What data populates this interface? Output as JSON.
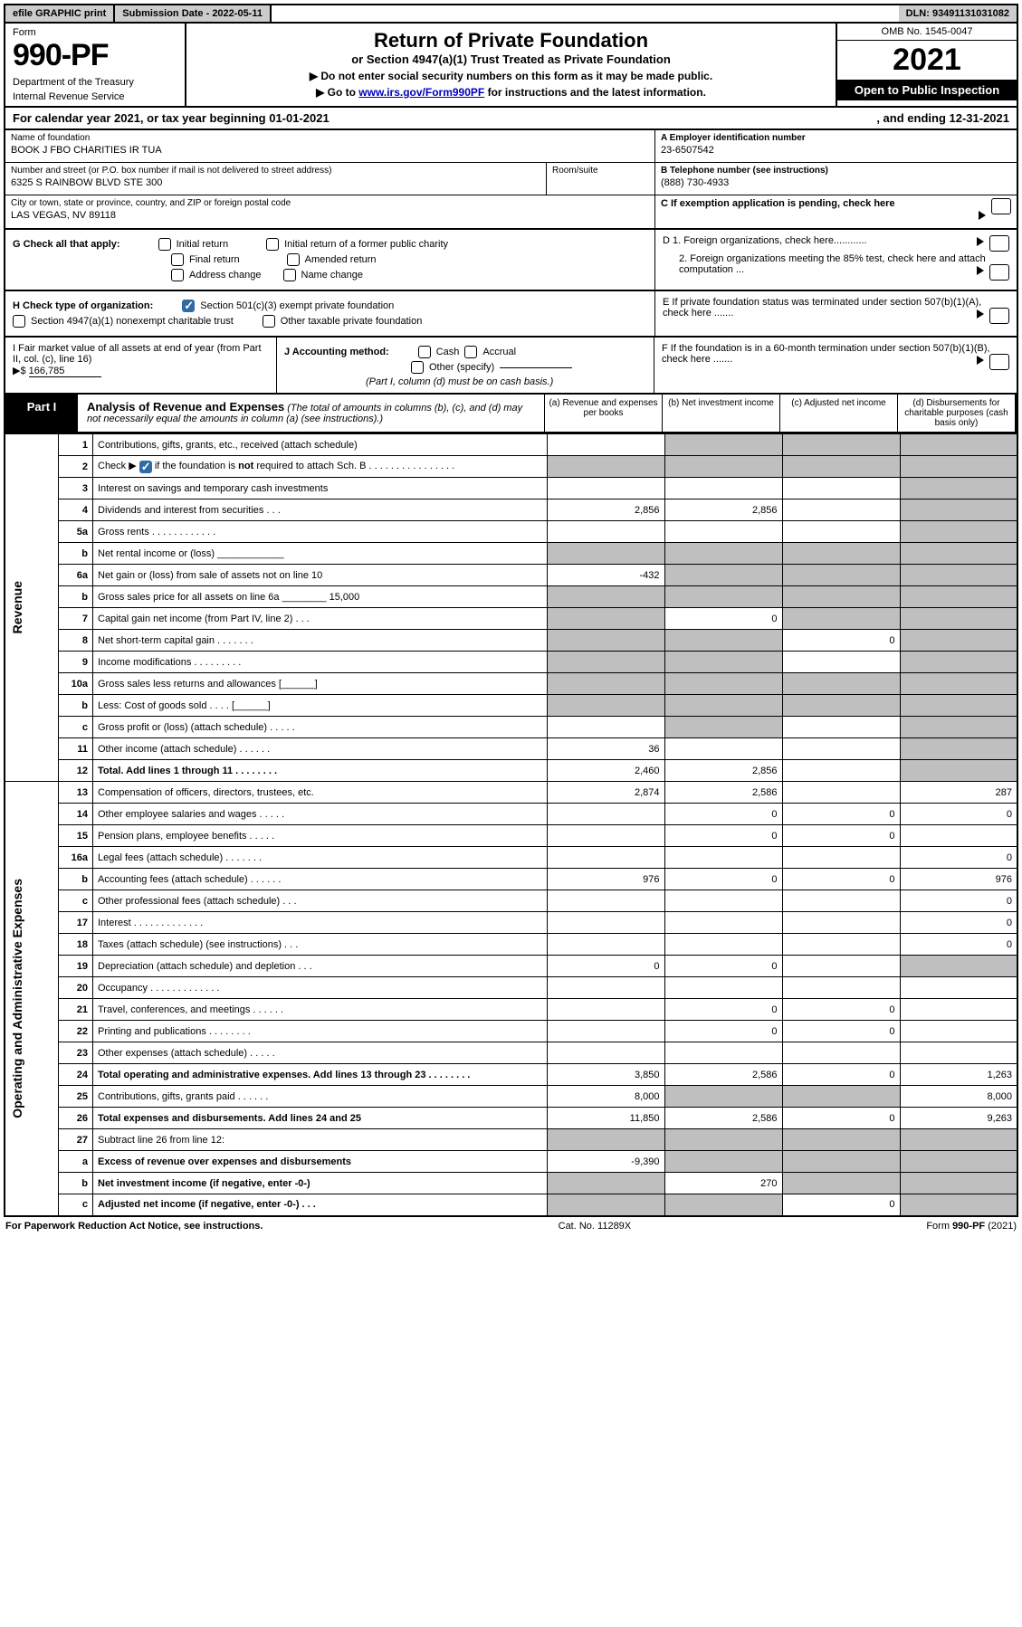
{
  "colors": {
    "black": "#000000",
    "grey_fill": "#bfbfbf",
    "header_grey": "#cccccc",
    "link": "#0000bb",
    "check_blue": "#2e6da4"
  },
  "top": {
    "efile": "efile GRAPHIC print",
    "subdate_label": "Submission Date - 2022-05-11",
    "dln": "DLN: 93491131031082"
  },
  "header": {
    "form_word": "Form",
    "form_num": "990-PF",
    "dept": "Department of the Treasury",
    "irs": "Internal Revenue Service",
    "title": "Return of Private Foundation",
    "subtitle": "or Section 4947(a)(1) Trust Treated as Private Foundation",
    "instr1": "▶ Do not enter social security numbers on this form as it may be made public.",
    "instr2_pre": "▶ Go to ",
    "instr2_link": "www.irs.gov/Form990PF",
    "instr2_post": " for instructions and the latest information.",
    "omb": "OMB No. 1545-0047",
    "year": "2021",
    "open": "Open to Public Inspection"
  },
  "calyear": {
    "text_a": "For calendar year 2021, or tax year beginning 01-01-2021",
    "text_b": ", and ending 12-31-2021"
  },
  "id": {
    "name_label": "Name of foundation",
    "name": "BOOK J FBO CHARITIES IR TUA",
    "addr_label": "Number and street (or P.O. box number if mail is not delivered to street address)",
    "addr": "6325 S RAINBOW BLVD STE 300",
    "room_label": "Room/suite",
    "city_label": "City or town, state or province, country, and ZIP or foreign postal code",
    "city": "LAS VEGAS, NV  89118",
    "ein_label": "A Employer identification number",
    "ein": "23-6507542",
    "tel_label": "B Telephone number (see instructions)",
    "tel": "(888) 730-4933",
    "c_label": "C If exemption application is pending, check here"
  },
  "g": {
    "label": "G Check all that apply:",
    "initial": "Initial return",
    "initial_former": "Initial return of a former public charity",
    "final": "Final return",
    "amended": "Amended return",
    "address": "Address change",
    "name": "Name change"
  },
  "h": {
    "label": "H Check type of organization:",
    "opt1": "Section 501(c)(3) exempt private foundation",
    "opt2": "Section 4947(a)(1) nonexempt charitable trust",
    "opt3": "Other taxable private foundation"
  },
  "i": {
    "label": "I Fair market value of all assets at end of year (from Part II, col. (c), line 16)",
    "arrow": "▶$",
    "value": "166,785"
  },
  "j": {
    "label": "J Accounting method:",
    "cash": "Cash",
    "accrual": "Accrual",
    "other": "Other (specify)",
    "note": "(Part I, column (d) must be on cash basis.)"
  },
  "d": {
    "d1": "D 1. Foreign organizations, check here............",
    "d2": "2. Foreign organizations meeting the 85% test, check here and attach computation ...",
    "e": "E   If private foundation status was terminated under section 507(b)(1)(A), check here .......",
    "f": "F   If the foundation is in a 60-month termination under section 507(b)(1)(B), check here ......."
  },
  "part1": {
    "tab": "Part I",
    "title": "Analysis of Revenue and Expenses",
    "note": " (The total of amounts in columns (b), (c), and (d) may not necessarily equal the amounts in column (a) (see instructions).)",
    "col_a": "(a)   Revenue and expenses per books",
    "col_b": "(b)   Net investment income",
    "col_c": "(c)   Adjusted net income",
    "col_d": "(d)   Disbursements for charitable purposes (cash basis only)"
  },
  "side_labels": {
    "revenue": "Revenue",
    "expenses": "Operating and Administrative Expenses"
  },
  "rows": [
    {
      "n": "1",
      "d": "Contributions, gifts, grants, etc., received (attach schedule)",
      "a": "",
      "b": "g",
      "c": "g",
      "dd": "g"
    },
    {
      "n": "2",
      "d": "Check ▶ ☑ if the foundation is not required to attach Sch. B   .  .  .  .  .  .  .  .  .  .  .  .  .  .  .  .",
      "a": "g",
      "b": "g",
      "c": "g",
      "dd": "g",
      "check": true
    },
    {
      "n": "3",
      "d": "Interest on savings and temporary cash investments",
      "a": "",
      "b": "",
      "c": "",
      "dd": "g"
    },
    {
      "n": "4",
      "d": "Dividends and interest from securities   .   .   .",
      "a": "2,856",
      "b": "2,856",
      "c": "",
      "dd": "g"
    },
    {
      "n": "5a",
      "d": "Gross rents   .   .   .   .   .   .   .   .   .   .   .   .",
      "a": "",
      "b": "",
      "c": "",
      "dd": "g"
    },
    {
      "n": "b",
      "d": "Net rental income or (loss)  ____________",
      "a": "g",
      "b": "g",
      "c": "g",
      "dd": "g"
    },
    {
      "n": "6a",
      "d": "Net gain or (loss) from sale of assets not on line 10",
      "a": "-432",
      "b": "g",
      "c": "g",
      "dd": "g"
    },
    {
      "n": "b",
      "d": "Gross sales price for all assets on line 6a ________ 15,000",
      "a": "g",
      "b": "g",
      "c": "g",
      "dd": "g"
    },
    {
      "n": "7",
      "d": "Capital gain net income (from Part IV, line 2)   .   .   .",
      "a": "g",
      "b": "0",
      "c": "g",
      "dd": "g"
    },
    {
      "n": "8",
      "d": "Net short-term capital gain   .   .   .   .   .   .   .",
      "a": "g",
      "b": "g",
      "c": "0",
      "dd": "g"
    },
    {
      "n": "9",
      "d": "Income modifications  .   .   .   .   .   .   .   .   .",
      "a": "g",
      "b": "g",
      "c": "",
      "dd": "g"
    },
    {
      "n": "10a",
      "d": "Gross sales less returns and allowances  [______]",
      "a": "g",
      "b": "g",
      "c": "g",
      "dd": "g"
    },
    {
      "n": "b",
      "d": "Less: Cost of goods sold   .   .   .   .   [______]",
      "a": "g",
      "b": "g",
      "c": "g",
      "dd": "g"
    },
    {
      "n": "c",
      "d": "Gross profit or (loss) (attach schedule)   .   .   .   .   .",
      "a": "",
      "b": "g",
      "c": "",
      "dd": "g"
    },
    {
      "n": "11",
      "d": "Other income (attach schedule)   .   .   .   .   .   .",
      "a": "36",
      "b": "",
      "c": "",
      "dd": "g"
    },
    {
      "n": "12",
      "d": "Total. Add lines 1 through 11   .   .   .   .   .   .   .   .",
      "a": "2,460",
      "b": "2,856",
      "c": "",
      "dd": "g",
      "bold": true
    }
  ],
  "exp_rows": [
    {
      "n": "13",
      "d": "Compensation of officers, directors, trustees, etc.",
      "a": "2,874",
      "b": "2,586",
      "c": "",
      "dd": "287"
    },
    {
      "n": "14",
      "d": "Other employee salaries and wages   .   .   .   .   .",
      "a": "",
      "b": "0",
      "c": "0",
      "dd": "0"
    },
    {
      "n": "15",
      "d": "Pension plans, employee benefits   .   .   .   .   .",
      "a": "",
      "b": "0",
      "c": "0",
      "dd": ""
    },
    {
      "n": "16a",
      "d": "Legal fees (attach schedule)  .   .   .   .   .   .   .",
      "a": "",
      "b": "",
      "c": "",
      "dd": "0"
    },
    {
      "n": "b",
      "d": "Accounting fees (attach schedule)  .   .   .   .   .   .",
      "a": "976",
      "b": "0",
      "c": "0",
      "dd": "976"
    },
    {
      "n": "c",
      "d": "Other professional fees (attach schedule)   .   .   .",
      "a": "",
      "b": "",
      "c": "",
      "dd": "0"
    },
    {
      "n": "17",
      "d": "Interest  .   .   .   .   .   .   .   .   .   .   .   .   .",
      "a": "",
      "b": "",
      "c": "",
      "dd": "0"
    },
    {
      "n": "18",
      "d": "Taxes (attach schedule) (see instructions)   .   .   .",
      "a": "",
      "b": "",
      "c": "",
      "dd": "0"
    },
    {
      "n": "19",
      "d": "Depreciation (attach schedule) and depletion   .   .   .",
      "a": "0",
      "b": "0",
      "c": "",
      "dd": "g"
    },
    {
      "n": "20",
      "d": "Occupancy  .   .   .   .   .   .   .   .   .   .   .   .   .",
      "a": "",
      "b": "",
      "c": "",
      "dd": ""
    },
    {
      "n": "21",
      "d": "Travel, conferences, and meetings  .   .   .   .   .   .",
      "a": "",
      "b": "0",
      "c": "0",
      "dd": ""
    },
    {
      "n": "22",
      "d": "Printing and publications  .   .   .   .   .   .   .   .",
      "a": "",
      "b": "0",
      "c": "0",
      "dd": ""
    },
    {
      "n": "23",
      "d": "Other expenses (attach schedule)   .   .   .   .   .",
      "a": "",
      "b": "",
      "c": "",
      "dd": ""
    },
    {
      "n": "24",
      "d": "Total operating and administrative expenses. Add lines 13 through 23   .   .   .   .   .   .   .   .",
      "a": "3,850",
      "b": "2,586",
      "c": "0",
      "dd": "1,263",
      "bold": true
    },
    {
      "n": "25",
      "d": "Contributions, gifts, grants paid   .   .   .   .   .   .",
      "a": "8,000",
      "b": "g",
      "c": "g",
      "dd": "8,000"
    },
    {
      "n": "26",
      "d": "Total expenses and disbursements. Add lines 24 and 25",
      "a": "11,850",
      "b": "2,586",
      "c": "0",
      "dd": "9,263",
      "bold": true
    },
    {
      "n": "27",
      "d": "Subtract line 26 from line 12:",
      "a": "g",
      "b": "g",
      "c": "g",
      "dd": "g"
    },
    {
      "n": "a",
      "d": "Excess of revenue over expenses and disbursements",
      "a": "-9,390",
      "b": "g",
      "c": "g",
      "dd": "g",
      "bold": true
    },
    {
      "n": "b",
      "d": "Net investment income (if negative, enter -0-)",
      "a": "g",
      "b": "270",
      "c": "g",
      "dd": "g",
      "bold": true
    },
    {
      "n": "c",
      "d": "Adjusted net income (if negative, enter -0-)   .   .   .",
      "a": "g",
      "b": "g",
      "c": "0",
      "dd": "g",
      "bold": true
    }
  ],
  "footer": {
    "left": "For Paperwork Reduction Act Notice, see instructions.",
    "mid": "Cat. No. 11289X",
    "right": "Form 990-PF (2021)"
  }
}
